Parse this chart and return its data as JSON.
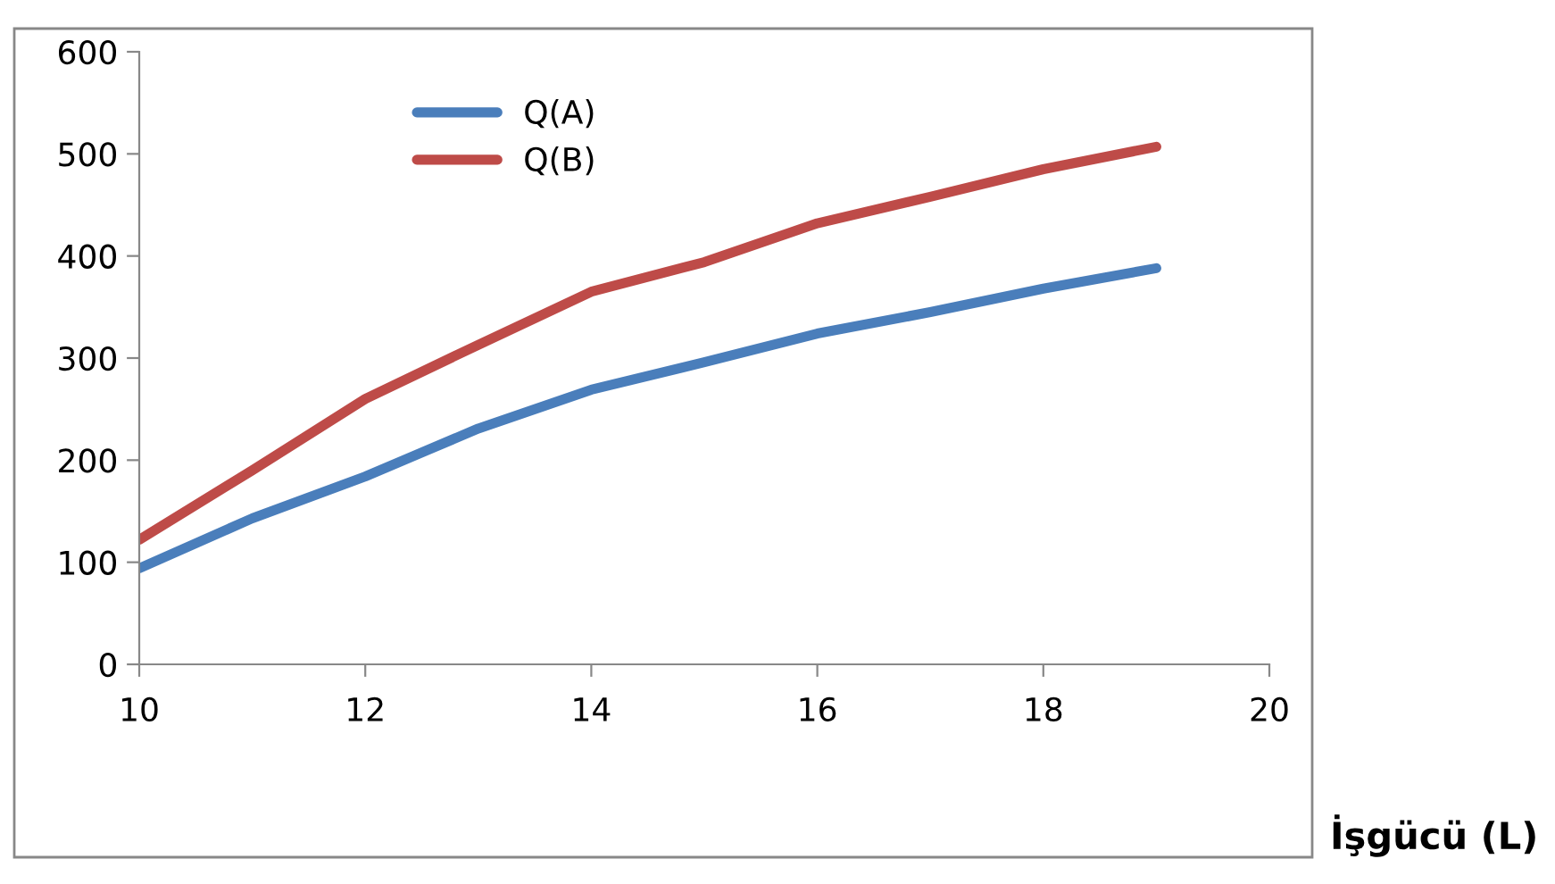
{
  "chart_data": {
    "type": "line",
    "xlabel": "İşgücü (L)",
    "x": [
      10,
      11,
      12,
      13,
      14,
      15,
      16,
      17,
      18,
      19
    ],
    "series": [
      {
        "name": "Q(A)",
        "color": "#4a7ebb",
        "values": [
          94,
          143,
          184,
          231,
          269,
          296,
          324,
          345,
          368,
          388
        ]
      },
      {
        "name": "Q(B)",
        "color": "#be4b48",
        "values": [
          122,
          190,
          260,
          313,
          365,
          394,
          432,
          458,
          485,
          507
        ]
      }
    ],
    "xlim": [
      10,
      20
    ],
    "xticks": [
      10,
      12,
      14,
      16,
      18,
      20
    ],
    "ylim": [
      0,
      600
    ],
    "yticks": [
      0,
      100,
      200,
      300,
      400,
      500,
      600
    ],
    "grid": false,
    "legend": "top",
    "marker": "none",
    "line_style": "solid"
  }
}
